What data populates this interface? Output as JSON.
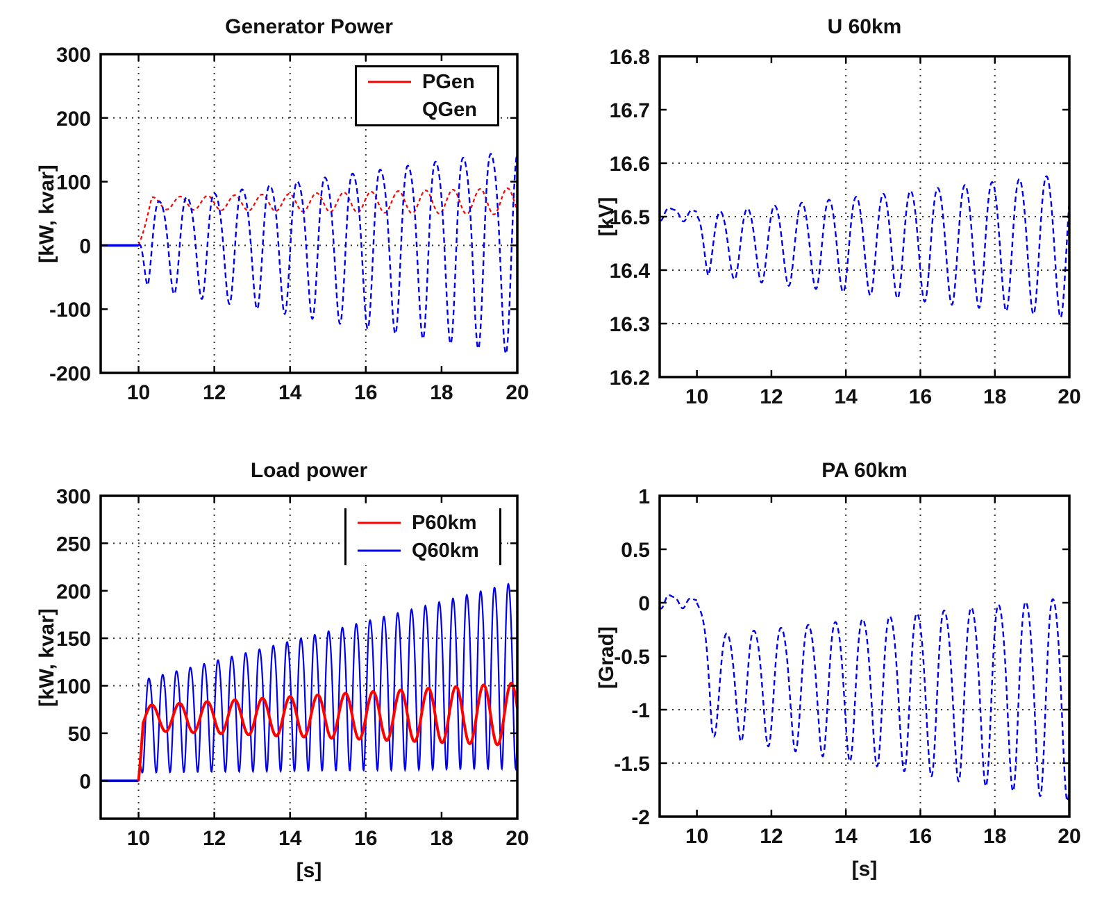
{
  "figure": {
    "background": "#ffffff",
    "accent_red": "#ff0000",
    "accent_blue": "#0000ee",
    "grid_color": "#333333",
    "frame_color": "#000000",
    "time_axis_unit": "[s]",
    "event_time_s": 10
  },
  "chart_data": [
    {
      "type": "line",
      "title": "Generator Power",
      "xlabel": "",
      "ylabel": "[kW, kvar]",
      "xlim": [
        9,
        20
      ],
      "ylim": [
        -200,
        300
      ],
      "xticks": [
        10,
        12,
        14,
        16,
        18,
        20
      ],
      "xtick_labels": [
        "10",
        "12",
        "14",
        "16",
        "18",
        "20"
      ],
      "yticks": [
        300,
        200,
        100,
        0,
        -100,
        -200
      ],
      "ytick_labels": [
        "300",
        "200",
        "100",
        "0",
        "-100",
        "-200"
      ],
      "grid_x": [
        10,
        12,
        14,
        16
      ],
      "grid_y": [
        200,
        0
      ],
      "legend": {
        "position": "top-right",
        "entries": [
          {
            "label": "PGen",
            "color": "#ff0000",
            "show_line": true
          },
          {
            "label": "QGen",
            "color": "#0000ee",
            "show_line": false
          }
        ]
      },
      "series": [
        {
          "name": "PGen",
          "color": "#ff0000",
          "dash": "5 4",
          "width": 2.2,
          "segments": [
            {
              "type": "flat",
              "t0": 9,
              "t1": 10,
              "value": 0
            },
            {
              "type": "osc",
              "t0": 10,
              "t1": 20,
              "period": 0.72,
              "peak_t": 10.38,
              "center0": 66,
              "center1": 69,
              "amp0": 9,
              "amp1": 21,
              "onset": 0.35,
              "from": 0,
              "h2": 0
            }
          ]
        },
        {
          "name": "QGen",
          "color": "#0000ee",
          "dash": "8 5",
          "width": 2.4,
          "segments": [
            {
              "type": "flat",
              "t0": 9,
              "t1": 10,
              "value": 0,
              "width": 3.6
            },
            {
              "type": "osc",
              "t0": 10,
              "t1": 20,
              "period": 0.73,
              "peak_t": 10.565,
              "center0": 8,
              "center1": 10,
              "amp0": 65,
              "amp1": 160,
              "onset": 0.25,
              "from": 0,
              "h2": 0.15
            }
          ]
        }
      ]
    },
    {
      "type": "line",
      "title": "U 60km",
      "xlabel": "",
      "ylabel": "[kV]",
      "xlim": [
        9,
        20
      ],
      "ylim": [
        16.2,
        16.8
      ],
      "xticks": [
        10,
        12,
        14,
        16,
        18,
        20
      ],
      "xtick_labels": [
        "10",
        "12",
        "14",
        "16",
        "18",
        "20"
      ],
      "yticks": [
        16.8,
        16.7,
        16.6,
        16.5,
        16.4,
        16.3,
        16.2
      ],
      "ytick_labels": [
        "16.8",
        "16.7",
        "16.6",
        "16.5",
        "16.4",
        "16.3",
        "16.2"
      ],
      "grid_x": [
        14,
        16,
        18
      ],
      "grid_y": [
        16.6,
        16.5,
        16.4,
        16.3
      ],
      "legend": null,
      "series": [
        {
          "name": "U60km",
          "color": "#0000ee",
          "dash": "8 5",
          "width": 2.4,
          "segments": [
            {
              "type": "osc",
              "t0": 9,
              "t1": 10,
              "period": 0.62,
              "peak_t": 9.32,
              "center0": 16.508,
              "center1": 16.503,
              "amp0": 0.012,
              "amp1": 0.01,
              "h2": 0.3
            },
            {
              "type": "osc",
              "t0": 10,
              "t1": 20,
              "period": 0.73,
              "peak_t": 10.635,
              "center0": 16.452,
              "center1": 16.455,
              "amp0": 0.057,
              "amp1": 0.135,
              "onset": 0.3,
              "from": 16.5,
              "h2": 0.08
            }
          ]
        }
      ]
    },
    {
      "type": "line",
      "title": "Load power",
      "xlabel": "[s]",
      "ylabel": "[kW, kvar]",
      "xlim": [
        9,
        20
      ],
      "ylim": [
        -40,
        300
      ],
      "xticks": [
        10,
        12,
        14,
        16,
        18,
        20
      ],
      "xtick_labels": [
        "10",
        "12",
        "14",
        "16",
        "18",
        "20"
      ],
      "yticks": [
        300,
        250,
        200,
        150,
        100,
        50,
        0
      ],
      "ytick_labels": [
        "300",
        "250",
        "200",
        "150",
        "100",
        "50",
        "0"
      ],
      "grid_x": [
        10,
        12,
        14,
        16
      ],
      "grid_y": [
        250,
        150,
        100,
        0
      ],
      "legend": {
        "position": "top-right",
        "entries": [
          {
            "label": "P60km",
            "color": "#ff0000",
            "show_line": true
          },
          {
            "label": "Q60km",
            "color": "#0000ee",
            "show_line": true
          }
        ]
      },
      "series": [
        {
          "name": "Q60km",
          "color": "#0000ee",
          "dash": "none",
          "width": 2.2,
          "segments": [
            {
              "type": "flat",
              "t0": 9,
              "t1": 10,
              "value": 0,
              "width": 3.6
            },
            {
              "type": "osc",
              "t0": 10,
              "t1": 20,
              "period": 0.365,
              "peak_t": 10.28,
              "center0": 62,
              "center1": 122,
              "amp0": 48,
              "amp1": 98,
              "onset": 0.1,
              "from": 0,
              "h2": 0.12
            }
          ]
        },
        {
          "name": "P60km",
          "color": "#ff0000",
          "dash": "none",
          "width": 4,
          "segments": [
            {
              "type": "osc",
              "t0": 10,
              "t1": 20,
              "period": 0.73,
              "peak_t": 10.35,
              "center0": 66,
              "center1": 70,
              "amp0": 13,
              "amp1": 33,
              "onset": 0.12,
              "from": 0,
              "h2": 0
            }
          ]
        }
      ]
    },
    {
      "type": "line",
      "title": "PA 60km",
      "xlabel": "[s]",
      "ylabel": "[Grad]",
      "xlim": [
        9,
        20
      ],
      "ylim": [
        -2,
        1
      ],
      "xticks": [
        10,
        12,
        14,
        16,
        18,
        20
      ],
      "xtick_labels": [
        "10",
        "12",
        "14",
        "16",
        "18",
        "20"
      ],
      "yticks": [
        1,
        0.5,
        0,
        -0.5,
        -1,
        -1.5,
        -2
      ],
      "ytick_labels": [
        "1",
        "0.5",
        "0",
        "-0.5",
        "-1",
        "-1.5",
        "-2"
      ],
      "grid_x": [
        14,
        16,
        18
      ],
      "grid_y": [
        -1,
        -1.5
      ],
      "legend": null,
      "series": [
        {
          "name": "PA60km",
          "color": "#0000ee",
          "dash": "8 5",
          "width": 2.4,
          "segments": [
            {
              "type": "osc",
              "t0": 9,
              "t1": 10,
              "period": 0.58,
              "peak_t": 9.32,
              "center0": 0.03,
              "center1": 0.0,
              "amp0": 0.065,
              "amp1": 0.04,
              "h2": 0.3
            },
            {
              "type": "osc",
              "t0": 10,
              "t1": 20,
              "period": 0.73,
              "peak_t": 10.815,
              "center0": -0.72,
              "center1": -0.8,
              "amp0": 0.45,
              "amp1": 0.95,
              "onset": 0.4,
              "from": 0,
              "h2": 0.12
            }
          ]
        }
      ]
    }
  ]
}
